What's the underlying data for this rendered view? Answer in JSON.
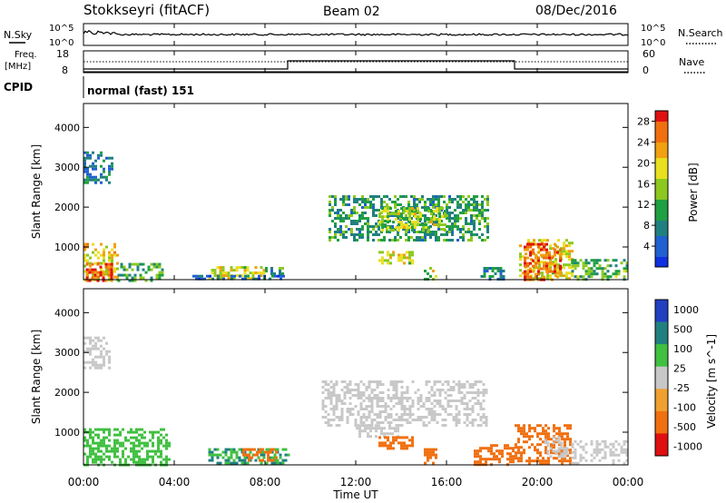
{
  "header": {
    "title": "Stokkseyri (fitACF)",
    "beam": "Beam 02",
    "date": "08/Dec/2016"
  },
  "strip_sky": {
    "label": "N.Sky",
    "right_label": "N.Search",
    "left_ticks": [
      "10^5",
      "10^0"
    ],
    "right_ticks": [
      "10^5",
      "10^0"
    ]
  },
  "strip_freq": {
    "label_line1": "Freq.",
    "label_line2": "[MHz]",
    "left_ticks": [
      "18",
      "8"
    ],
    "right_ticks": [
      "60",
      "0"
    ],
    "right_label": "Nave"
  },
  "cpid": {
    "label": "CPID",
    "mode": "normal (fast) 151"
  },
  "chart_data": [
    {
      "type": "heatmap",
      "name": "power",
      "ylabel": "Slant Range [km]",
      "ylim": [
        180,
        4600
      ],
      "yticks": [
        "1000",
        "2000",
        "3000",
        "4000"
      ],
      "xlim": [
        0,
        24
      ],
      "colorbar_label": "Power [dB]",
      "colorbar_ticks": [
        "4",
        "8",
        "12",
        "16",
        "20",
        "24",
        "28"
      ],
      "colorbar_range": [
        0,
        30
      ],
      "colors": {
        "low": "#1030e0",
        "mid": "#20a040",
        "mid2": "#e8e020",
        "high": "#f07010",
        "max": "#e01010"
      },
      "regions": [
        {
          "t0": 0.0,
          "t1": 1.5,
          "r0": 180,
          "r1": 1100,
          "level": 20
        },
        {
          "t0": 0.1,
          "t1": 1.2,
          "r0": 180,
          "r1": 600,
          "level": 26
        },
        {
          "t0": 1.5,
          "t1": 3.5,
          "r0": 180,
          "r1": 600,
          "level": 12
        },
        {
          "t0": 5.5,
          "t1": 8.0,
          "r0": 200,
          "r1": 520,
          "level": 18
        },
        {
          "t0": 8.0,
          "t1": 9.0,
          "r0": 300,
          "r1": 500,
          "level": 10
        },
        {
          "t0": 10.8,
          "t1": 17.8,
          "r0": 1200,
          "r1": 2300,
          "level": 10
        },
        {
          "t0": 13.0,
          "t1": 16.0,
          "r0": 1400,
          "r1": 2000,
          "level": 16
        },
        {
          "t0": 13.0,
          "t1": 14.5,
          "r0": 600,
          "r1": 900,
          "level": 18
        },
        {
          "t0": 15.0,
          "t1": 15.5,
          "r0": 200,
          "r1": 500,
          "level": 16
        },
        {
          "t0": 17.5,
          "t1": 18.5,
          "r0": 200,
          "r1": 500,
          "level": 8
        },
        {
          "t0": 19.2,
          "t1": 21.5,
          "r0": 180,
          "r1": 1200,
          "level": 18
        },
        {
          "t0": 19.4,
          "t1": 21.0,
          "r0": 200,
          "r1": 1100,
          "level": 27
        },
        {
          "t0": 21.5,
          "t1": 24.0,
          "r0": 180,
          "r1": 700,
          "level": 12
        },
        {
          "t0": 0.0,
          "t1": 1.3,
          "r0": 2600,
          "r1": 3400,
          "level": 7
        },
        {
          "t0": 4.8,
          "t1": 9.0,
          "r0": 180,
          "r1": 300,
          "level": 6
        }
      ]
    },
    {
      "type": "heatmap",
      "name": "velocity",
      "ylabel": "Slant Range [km]",
      "ylim": [
        180,
        4600
      ],
      "yticks": [
        "1000",
        "2000",
        "3000",
        "4000"
      ],
      "xlim": [
        0,
        24
      ],
      "xticks": [
        "00:00",
        "04:00",
        "08:00",
        "12:00",
        "16:00",
        "20:00",
        "00:00"
      ],
      "xlabel": "Time UT",
      "colorbar_label": "Velocity [m s^-1]",
      "colorbar_ticks": [
        "1000",
        "500",
        "100",
        "25",
        "-25",
        "-100",
        "-500",
        "-1000"
      ],
      "regions": [
        {
          "t0": 0.0,
          "t1": 3.8,
          "r0": 180,
          "r1": 1100,
          "vel": 50
        },
        {
          "t0": 5.5,
          "t1": 9.0,
          "r0": 200,
          "r1": 600,
          "vel": 100
        },
        {
          "t0": 7.0,
          "t1": 8.5,
          "r0": 300,
          "r1": 600,
          "vel": -150
        },
        {
          "t0": 0.0,
          "t1": 1.2,
          "r0": 2600,
          "r1": 3400,
          "vel": 0
        },
        {
          "t0": 10.5,
          "t1": 17.8,
          "r0": 1200,
          "r1": 2300,
          "vel": 0
        },
        {
          "t0": 12.0,
          "t1": 13.8,
          "r0": 900,
          "r1": 1200,
          "vel": 0
        },
        {
          "t0": 13.0,
          "t1": 14.5,
          "r0": 600,
          "r1": 900,
          "vel": -150
        },
        {
          "t0": 15.0,
          "t1": 15.6,
          "r0": 200,
          "r1": 600,
          "vel": -150
        },
        {
          "t0": 17.2,
          "t1": 19.0,
          "r0": 200,
          "r1": 700,
          "vel": -150
        },
        {
          "t0": 19.0,
          "t1": 21.5,
          "r0": 180,
          "r1": 1200,
          "vel": -120
        },
        {
          "t0": 20.3,
          "t1": 21.3,
          "r0": 400,
          "r1": 900,
          "vel": 0
        },
        {
          "t0": 21.5,
          "t1": 24.0,
          "r0": 200,
          "r1": 800,
          "vel": 0
        }
      ]
    }
  ]
}
